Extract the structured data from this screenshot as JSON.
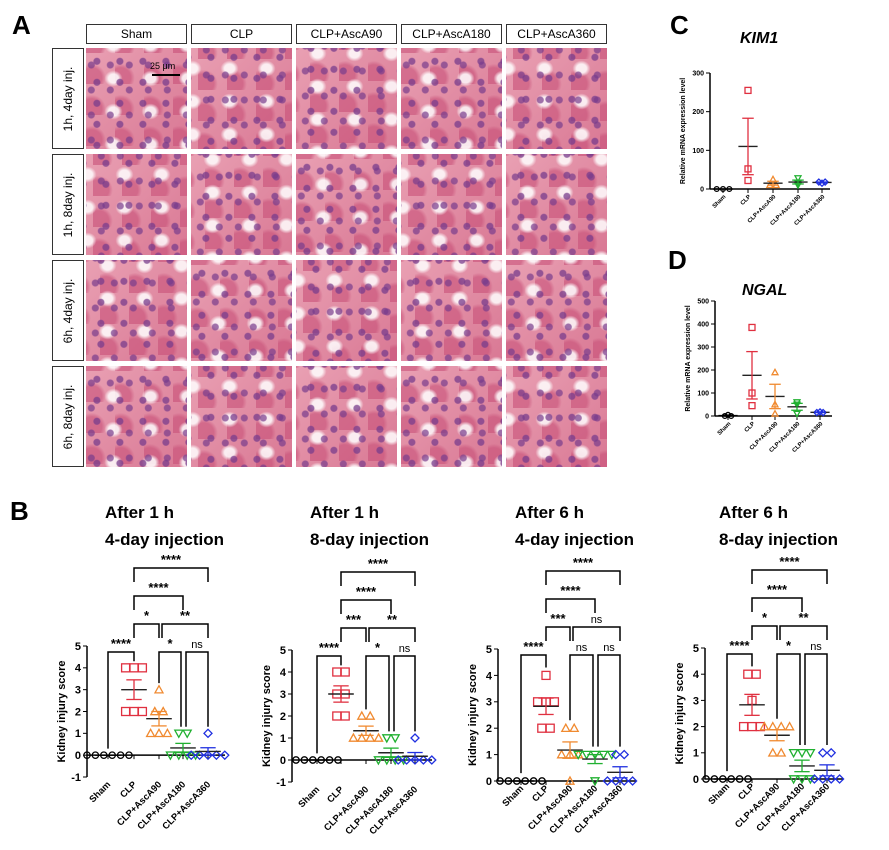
{
  "panel_labels": {
    "a": "A",
    "b": "B",
    "c": "C",
    "d": "D"
  },
  "histology": {
    "columns": [
      "Sham",
      "CLP",
      "CLP+AscA90",
      "CLP+AscA180",
      "CLP+AscA360"
    ],
    "rows": [
      "1h, 4day inj.",
      "1h, 8day inj.",
      "6h, 4day inj.",
      "6h, 8day inj."
    ],
    "scale_bar": "25 μm"
  },
  "colors": {
    "Sham": "#000000",
    "CLP": "#e03040",
    "CLP+AscA90": "#f08a30",
    "CLP+AscA180": "#20b030",
    "CLP+AscA360": "#2030e0"
  },
  "chart_data": [
    {
      "type": "scatter",
      "title_line1": "After 1 h",
      "title_line2": "4-day injection",
      "ylabel": "Kidney injury score",
      "ylim": [
        -1,
        5
      ],
      "yticks": [
        -1,
        0,
        1,
        2,
        3,
        4,
        5
      ],
      "categories": [
        "Sham",
        "CLP",
        "CLP+AscA90",
        "CLP+AscA180",
        "CLP+AscA360"
      ],
      "points": [
        [
          0,
          0,
          0,
          0,
          0,
          0
        ],
        [
          4,
          4,
          4,
          2,
          2,
          2
        ],
        [
          3,
          2,
          2,
          1,
          1,
          1
        ],
        [
          1,
          1,
          0,
          0,
          0,
          0
        ],
        [
          1,
          0,
          0,
          0,
          0,
          0
        ]
      ],
      "mean": [
        0,
        3,
        1.67,
        0.33,
        0.17
      ],
      "sem": [
        0,
        0.45,
        0.33,
        0.21,
        0.17
      ],
      "comparisons": [
        {
          "from": 0,
          "to": 1,
          "label": "****",
          "level": 0
        },
        {
          "from": 2,
          "to": 3,
          "label": "*",
          "level": 0
        },
        {
          "from": 3,
          "to": 4,
          "label": "ns",
          "level": 0
        },
        {
          "from": 1,
          "to": 2,
          "label": "*",
          "level": 1
        },
        {
          "from": 2,
          "to": 4,
          "label": "**",
          "level": 1
        },
        {
          "from": 1,
          "to": 3,
          "label": "****",
          "level": 2
        },
        {
          "from": 1,
          "to": 4,
          "label": "****",
          "level": 3
        }
      ]
    },
    {
      "type": "scatter",
      "title_line1": "After 1 h",
      "title_line2": "8-day injection",
      "ylabel": "Kidney injury score",
      "ylim": [
        -1,
        5
      ],
      "yticks": [
        -1,
        0,
        1,
        2,
        3,
        4,
        5
      ],
      "categories": [
        "Sham",
        "CLP",
        "CLP+AscA90",
        "CLP+AscA180",
        "CLP+AscA360"
      ],
      "points": [
        [
          0,
          0,
          0,
          0,
          0,
          0
        ],
        [
          4,
          4,
          3,
          3,
          2,
          2
        ],
        [
          2,
          2,
          1,
          1,
          1,
          1
        ],
        [
          1,
          1,
          0,
          0,
          0,
          0
        ],
        [
          1,
          0,
          0,
          0,
          0,
          0
        ]
      ],
      "mean": [
        0,
        3,
        1.33,
        0.33,
        0.17
      ],
      "sem": [
        0,
        0.37,
        0.21,
        0.21,
        0.17
      ],
      "comparisons": [
        {
          "from": 0,
          "to": 1,
          "label": "****",
          "level": 0
        },
        {
          "from": 2,
          "to": 3,
          "label": "*",
          "level": 0
        },
        {
          "from": 3,
          "to": 4,
          "label": "ns",
          "level": 0
        },
        {
          "from": 1,
          "to": 2,
          "label": "***",
          "level": 1
        },
        {
          "from": 2,
          "to": 4,
          "label": "**",
          "level": 1
        },
        {
          "from": 1,
          "to": 3,
          "label": "****",
          "level": 2
        },
        {
          "from": 1,
          "to": 4,
          "label": "****",
          "level": 3
        }
      ]
    },
    {
      "type": "scatter",
      "title_line1": "After 6 h",
      "title_line2": "4-day injection",
      "ylabel": "Kidney injury score",
      "ylim": [
        0,
        5
      ],
      "yticks": [
        0,
        1,
        2,
        3,
        4,
        5
      ],
      "categories": [
        "Sham",
        "CLP",
        "CLP+AscA90",
        "CLP+AscA180",
        "CLP+AscA360"
      ],
      "points": [
        [
          0,
          0,
          0,
          0,
          0,
          0
        ],
        [
          4,
          3,
          3,
          3,
          2,
          2
        ],
        [
          2,
          2,
          1,
          1,
          1,
          0
        ],
        [
          1,
          1,
          1,
          1,
          1,
          0
        ],
        [
          1,
          1,
          0,
          0,
          0,
          0
        ]
      ],
      "mean": [
        0,
        2.83,
        1.17,
        0.83,
        0.33
      ],
      "sem": [
        0,
        0.31,
        0.31,
        0.17,
        0.21
      ],
      "comparisons": [
        {
          "from": 0,
          "to": 1,
          "label": "****",
          "level": 0
        },
        {
          "from": 2,
          "to": 3,
          "label": "ns",
          "level": 0
        },
        {
          "from": 3,
          "to": 4,
          "label": "ns",
          "level": 0
        },
        {
          "from": 1,
          "to": 2,
          "label": "***",
          "level": 1
        },
        {
          "from": 2,
          "to": 4,
          "label": "ns",
          "level": 1
        },
        {
          "from": 1,
          "to": 3,
          "label": "****",
          "level": 2
        },
        {
          "from": 1,
          "to": 4,
          "label": "****",
          "level": 3
        }
      ]
    },
    {
      "type": "scatter",
      "title_line1": "After 6 h",
      "title_line2": "8-day injection",
      "ylabel": "Kidney injury score",
      "ylim": [
        0,
        5
      ],
      "yticks": [
        0,
        1,
        2,
        3,
        4,
        5
      ],
      "categories": [
        "Sham",
        "CLP",
        "CLP+AscA90",
        "CLP+AscA180",
        "CLP+AscA360"
      ],
      "points": [
        [
          0,
          0,
          0,
          0,
          0,
          0
        ],
        [
          4,
          4,
          3,
          2,
          2,
          2
        ],
        [
          2,
          2,
          2,
          2,
          1,
          1
        ],
        [
          1,
          1,
          1,
          0,
          0,
          0
        ],
        [
          1,
          1,
          0,
          0,
          0,
          0
        ]
      ],
      "mean": [
        0,
        2.83,
        1.67,
        0.5,
        0.33
      ],
      "sem": [
        0,
        0.4,
        0.21,
        0.22,
        0.21
      ],
      "comparisons": [
        {
          "from": 0,
          "to": 1,
          "label": "****",
          "level": 0
        },
        {
          "from": 2,
          "to": 3,
          "label": "*",
          "level": 0
        },
        {
          "from": 3,
          "to": 4,
          "label": "ns",
          "level": 0
        },
        {
          "from": 1,
          "to": 2,
          "label": "*",
          "level": 1
        },
        {
          "from": 2,
          "to": 4,
          "label": "**",
          "level": 1
        },
        {
          "from": 1,
          "to": 3,
          "label": "****",
          "level": 2
        },
        {
          "from": 1,
          "to": 4,
          "label": "****",
          "level": 3
        }
      ]
    },
    {
      "type": "scatter",
      "title": "KIM1",
      "ylabel": "Relative mRNA expression level",
      "ylim": [
        0,
        300
      ],
      "yticks": [
        0,
        100,
        200,
        300
      ],
      "categories": [
        "Sham",
        "CLP",
        "CLP+AscA90",
        "CLP+AscA180",
        "CLP+AscA360"
      ],
      "points": [
        [
          0,
          0,
          0
        ],
        [
          255,
          52,
          22
        ],
        [
          25,
          10,
          10
        ],
        [
          28,
          10,
          15
        ],
        [
          15,
          18,
          18
        ]
      ],
      "mean": [
        0,
        110,
        15,
        18,
        17
      ],
      "sem": [
        0,
        73,
        5,
        5,
        1
      ]
    },
    {
      "type": "scatter",
      "title": "NGAL",
      "ylabel": "Relative mRNA expression level",
      "ylim": [
        0,
        500
      ],
      "yticks": [
        0,
        100,
        200,
        300,
        400,
        500
      ],
      "categories": [
        "Sham",
        "CLP",
        "CLP+AscA90",
        "CLP+AscA180",
        "CLP+AscA360"
      ],
      "points": [
        [
          0,
          5,
          0
        ],
        [
          385,
          100,
          45
        ],
        [
          190,
          50,
          10
        ],
        [
          60,
          50,
          10
        ],
        [
          15,
          15,
          18
        ]
      ],
      "mean": [
        2,
        177,
        85,
        40,
        16
      ],
      "sem": [
        2,
        103,
        53,
        15,
        1
      ]
    }
  ]
}
